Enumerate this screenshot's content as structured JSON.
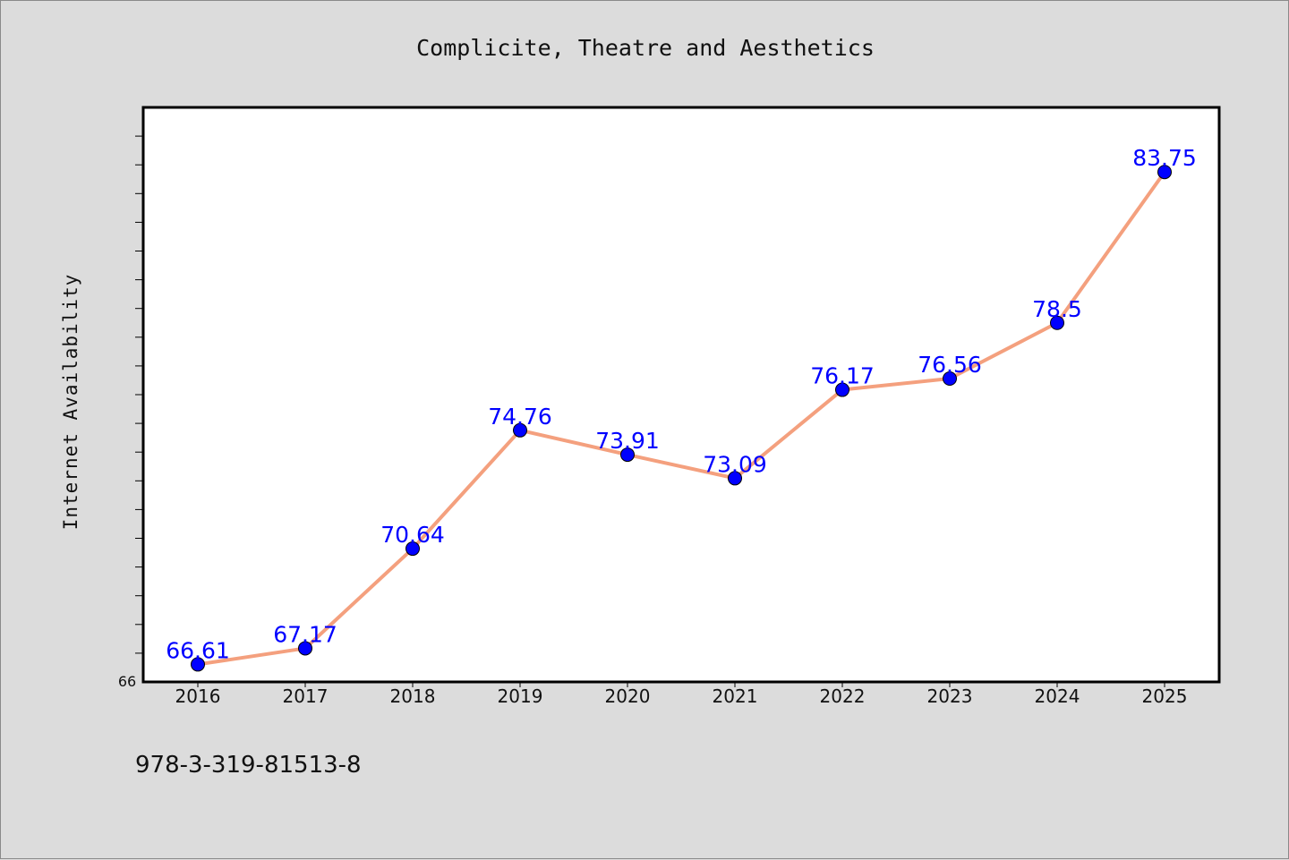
{
  "chart_data": {
    "type": "line",
    "title": "Complicite, Theatre and Aesthetics",
    "ylabel": "Internet Availability",
    "xlabel": "",
    "categories": [
      "2016",
      "2017",
      "2018",
      "2019",
      "2020",
      "2021",
      "2022",
      "2023",
      "2024",
      "2025"
    ],
    "series": [
      {
        "values": [
          66.61,
          67.17,
          70.64,
          74.76,
          73.91,
          73.09,
          76.17,
          76.56,
          78.5,
          83.75
        ],
        "value_labels": [
          "66.61",
          "67.17",
          "70.64",
          "74.76",
          "73.91",
          "73.09",
          "76.17",
          "76.56",
          "78.5",
          "83.75"
        ]
      }
    ],
    "ylim": [
      66,
      86
    ],
    "y_tick_labels": [
      "66"
    ],
    "grid": false,
    "line_color": "#f4a07e",
    "marker_color": "#0000ff",
    "label_color": "#0000ff"
  },
  "footer": {
    "text": "978-3-319-81513-8"
  },
  "colors": {
    "background": "#dcdcdc",
    "plot_background": "#ffffff"
  }
}
